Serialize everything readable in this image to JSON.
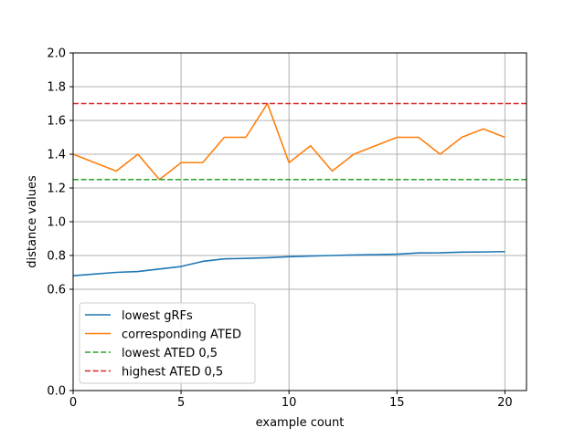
{
  "chart_data": {
    "type": "line",
    "title": "",
    "xlabel": "example count",
    "ylabel": "distance values",
    "xlim": [
      0,
      21
    ],
    "ylim": [
      0.0,
      2.0
    ],
    "grid": true,
    "legend_position": "bottom-left",
    "xticks": [
      "0",
      "5",
      "10",
      "15",
      "20"
    ],
    "xtick_values": [
      0,
      5,
      10,
      15,
      20
    ],
    "yticks": [
      "0.0",
      "0.6",
      "0.8",
      "1.0",
      "1.2",
      "1.4",
      "1.6",
      "1.8",
      "2.0"
    ],
    "ytick_values": [
      0.0,
      0.6,
      0.8,
      1.0,
      1.2,
      1.4,
      1.6,
      1.8,
      2.0
    ],
    "x": [
      0,
      1,
      2,
      3,
      4,
      5,
      6,
      7,
      8,
      9,
      10,
      11,
      12,
      13,
      14,
      15,
      16,
      17,
      18,
      19,
      20
    ],
    "series": [
      {
        "name": "lowest gRFs",
        "color": "#1f77b4",
        "style": "solid",
        "values": [
          0.68,
          0.69,
          0.7,
          0.705,
          0.72,
          0.735,
          0.765,
          0.78,
          0.783,
          0.787,
          0.793,
          0.797,
          0.8,
          0.803,
          0.805,
          0.808,
          0.815,
          0.816,
          0.82,
          0.821,
          0.823
        ]
      },
      {
        "name": "corresponding ATED",
        "color": "#ff7f0e",
        "style": "solid",
        "values": [
          1.4,
          1.35,
          1.3,
          1.4,
          1.25,
          1.35,
          1.35,
          1.5,
          1.5,
          1.7,
          1.35,
          1.45,
          1.3,
          1.4,
          1.45,
          1.5,
          1.5,
          1.4,
          1.5,
          1.55,
          1.5
        ]
      },
      {
        "name": "lowest ATED 0,5",
        "color": "#2ca02c",
        "style": "dashed",
        "constant": 1.25
      },
      {
        "name": "highest ATED 0,5",
        "color": "#d62728",
        "style": "dashed",
        "constant": 1.7
      }
    ]
  }
}
